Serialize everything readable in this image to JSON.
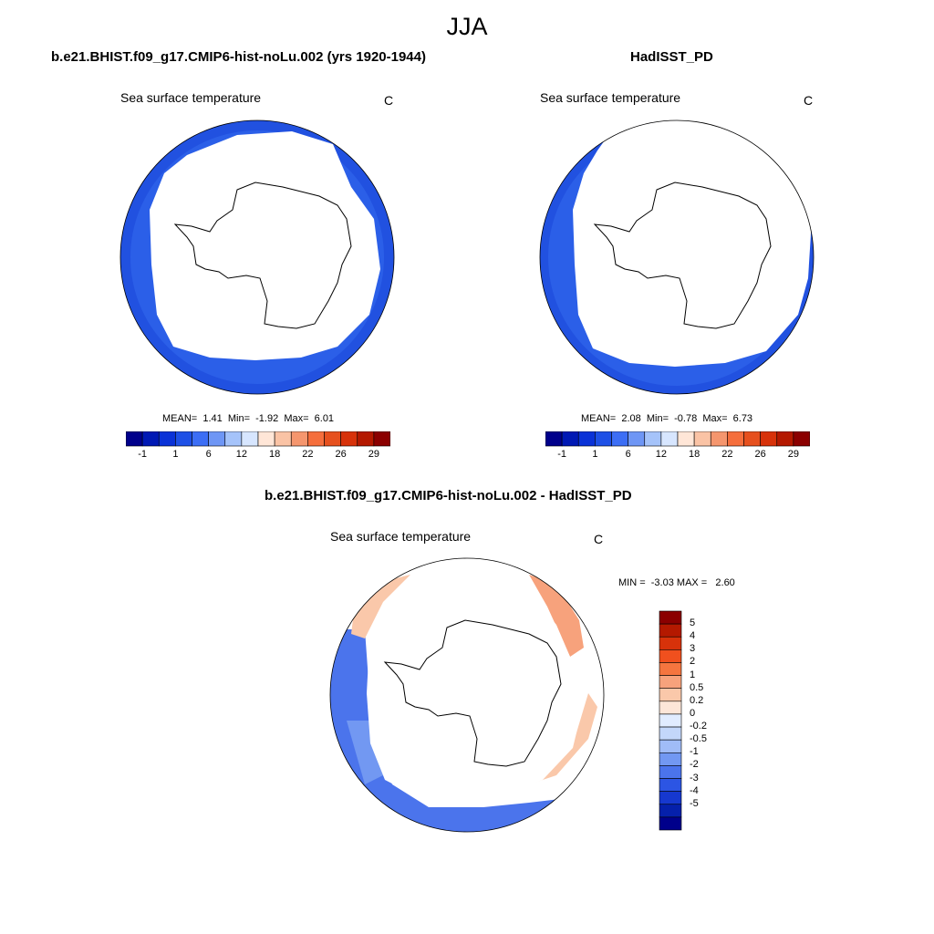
{
  "title": "JJA",
  "panels": [
    {
      "title": "b.e21.BHIST.f09_g17.CMIP6-hist-noLu.002 (yrs 1920-1944)",
      "variable": "Sea surface temperature",
      "units": "C",
      "stats": {
        "mean": "1.41",
        "min": "-1.92",
        "max": "6.01"
      },
      "colorbar_ticks": [
        "-1",
        "1",
        "6",
        "12",
        "18",
        "22",
        "26",
        "29"
      ]
    },
    {
      "title": "HadISST_PD",
      "variable": "Sea surface temperature",
      "units": "C",
      "stats": {
        "mean": "2.08",
        "min": "-0.78",
        "max": "6.73"
      },
      "colorbar_ticks": [
        "-1",
        "1",
        "6",
        "12",
        "18",
        "22",
        "26",
        "29"
      ]
    },
    {
      "title": "b.e21.BHIST.f09_g17.CMIP6-hist-noLu.002 - HadISST_PD",
      "variable": "Sea surface temperature",
      "units": "C",
      "stats": {
        "min": "-3.03",
        "max": "2.60"
      },
      "colorbar_ticks": [
        "5",
        "4",
        "3",
        "2",
        "1",
        "0.5",
        "0.2",
        "0",
        "-0.2",
        "-0.5",
        "-1",
        "-2",
        "-3",
        "-4",
        "-5"
      ]
    }
  ],
  "colors": {
    "abs_scale": [
      "#00008b",
      "#0019b4",
      "#0a32d7",
      "#1e50e6",
      "#3c6ef5",
      "#6e96f5",
      "#a5c3fa",
      "#d7e6ff",
      "#ffe6d7",
      "#fac3a5",
      "#f5966e",
      "#f56e3c",
      "#e6501e",
      "#d7320a",
      "#b41900",
      "#8b0000"
    ],
    "diff_scale": [
      "#8b0000",
      "#b41900",
      "#d7320a",
      "#f0501e",
      "#f5753f",
      "#f7a27c",
      "#fac8aa",
      "#fde6d8",
      "#e1ecff",
      "#c3d7fa",
      "#a0bcf7",
      "#7298f2",
      "#4b74ec",
      "#2c55e4",
      "#1638cf",
      "#0520ab",
      "#00008b"
    ],
    "ocean_blue": "#2b5fe8",
    "ocean_deep": "#1a47db",
    "land_outline": "#000000"
  }
}
